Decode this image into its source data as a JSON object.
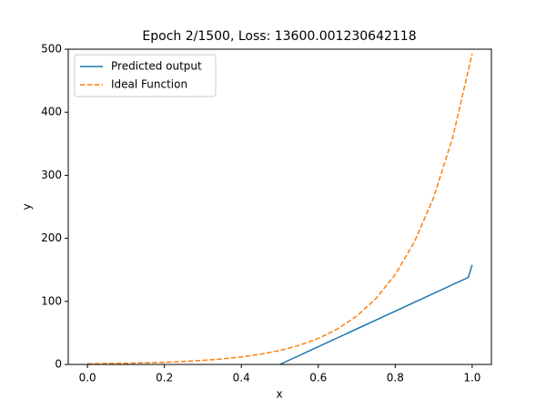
{
  "chart_data": {
    "type": "line",
    "title": "Epoch 2/1500, Loss: 13600.001230642118",
    "x_label": "x",
    "y_label": "y",
    "xlim": [
      -0.05,
      1.05
    ],
    "ylim": [
      0,
      500
    ],
    "xticks": [
      {
        "value": 0,
        "label": "0.0"
      },
      0.2,
      0.4,
      0.6,
      0.8,
      {
        "value": 1,
        "label": "1.0"
      }
    ],
    "yticks": [
      0,
      100,
      200,
      300,
      400,
      500
    ],
    "legend": "upper left",
    "series": [
      {
        "name": "Predicted output",
        "color": "#1f77b4",
        "linestyle": "solid",
        "x": [
          0.5,
          0.99,
          1.0
        ],
        "values": [
          0,
          138,
          158
        ]
      },
      {
        "name": "Ideal Function",
        "color": "#ff7f0e",
        "linestyle": "dashed",
        "x": [
          0,
          0.05,
          0.1,
          0.15,
          0.2,
          0.25,
          0.3,
          0.35,
          0.4,
          0.45,
          0.5,
          0.55,
          0.6,
          0.65,
          0.7,
          0.75,
          0.8,
          0.85,
          0.9,
          0.95,
          1.0
        ],
        "values": [
          1,
          1.36,
          1.86,
          2.53,
          3.46,
          4.71,
          6.42,
          8.76,
          11.94,
          16.28,
          22.2,
          30.27,
          41.26,
          56.26,
          76.71,
          104.6,
          142.6,
          194.4,
          265.1,
          361.4,
          492.7
        ]
      }
    ]
  }
}
